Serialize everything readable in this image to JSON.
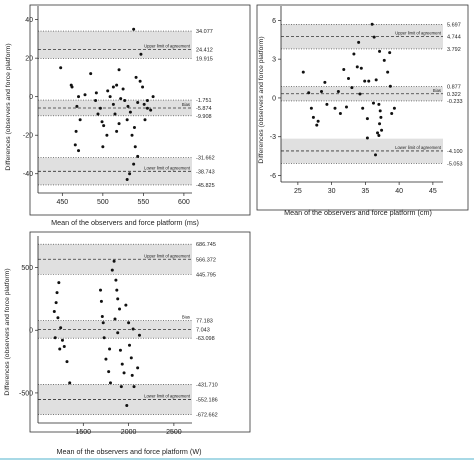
{
  "chart_data": [
    {
      "type": "scatter",
      "xlabel": "Mean of the observers and force platform (ms)",
      "ylabel": "Differences (observers and force platform)",
      "xlim": [
        420,
        610
      ],
      "ylim": [
        -50,
        45
      ],
      "xticks": [
        450,
        500,
        550,
        600
      ],
      "yticks": [
        40,
        20,
        0,
        -20,
        -40
      ],
      "bands": [
        [
          19.915,
          34.077
        ],
        [
          -9.908,
          -1.751
        ],
        [
          -45.825,
          -31.662
        ]
      ],
      "lines": [
        {
          "value": 34.077,
          "style": "dotted",
          "label": "34.077"
        },
        {
          "value": 24.412,
          "style": "dashed",
          "label": "24.412",
          "caption": "Upper limit of agreement"
        },
        {
          "value": 19.915,
          "style": "dotted",
          "label": "19.915"
        },
        {
          "value": -1.751,
          "style": "dotted",
          "label": "-1.751"
        },
        {
          "value": -5.874,
          "style": "dashed",
          "label": "-5.874",
          "caption": "Bias"
        },
        {
          "value": -9.908,
          "style": "dotted",
          "label": "-9.908"
        },
        {
          "value": -31.662,
          "style": "dotted",
          "label": "-31.662"
        },
        {
          "value": -38.743,
          "style": "dashed",
          "label": "-38.743",
          "caption": "Lower limit of agreement"
        },
        {
          "value": -45.825,
          "style": "dotted",
          "label": "-45.825"
        }
      ],
      "points": [
        [
          448,
          15
        ],
        [
          461,
          6
        ],
        [
          462,
          5
        ],
        [
          470,
          0
        ],
        [
          468,
          -5
        ],
        [
          472,
          -12
        ],
        [
          467,
          -18
        ],
        [
          466,
          -25
        ],
        [
          470,
          -28
        ],
        [
          478,
          1
        ],
        [
          485,
          12
        ],
        [
          492,
          2
        ],
        [
          491,
          -2
        ],
        [
          497,
          -6
        ],
        [
          494,
          -9
        ],
        [
          499,
          -13
        ],
        [
          501,
          -15
        ],
        [
          505,
          -20
        ],
        [
          500,
          -26
        ],
        [
          506,
          3
        ],
        [
          509,
          0
        ],
        [
          513,
          5
        ],
        [
          517,
          6
        ],
        [
          513,
          -4
        ],
        [
          515,
          -9
        ],
        [
          520,
          -14
        ],
        [
          522,
          -1
        ],
        [
          517,
          -18
        ],
        [
          520,
          14
        ],
        [
          525,
          4
        ],
        [
          527,
          -2
        ],
        [
          531,
          -5
        ],
        [
          534,
          -8
        ],
        [
          530,
          -12
        ],
        [
          539,
          -16
        ],
        [
          536,
          -20
        ],
        [
          540,
          -26
        ],
        [
          543,
          -31
        ],
        [
          538,
          -35
        ],
        [
          533,
          -40
        ],
        [
          530,
          -43
        ],
        [
          538,
          35
        ],
        [
          547,
          22
        ],
        [
          541,
          10
        ],
        [
          546,
          8
        ],
        [
          543,
          -3
        ],
        [
          551,
          -4
        ],
        [
          555,
          -6
        ],
        [
          552,
          -12
        ],
        [
          549,
          5
        ],
        [
          555,
          -2
        ],
        [
          559,
          -7
        ],
        [
          562,
          0
        ]
      ]
    },
    {
      "type": "scatter",
      "xlabel": "Mean of the observers and force platform (cm)",
      "ylabel": "Differences (observers and force platform)",
      "xlim": [
        22.5,
        46.5
      ],
      "ylim": [
        -6.5,
        6.8
      ],
      "xticks": [
        25,
        30,
        35,
        40,
        45
      ],
      "yticks": [
        6,
        3,
        0,
        -3,
        -6
      ],
      "bands": [
        [
          3.792,
          5.697
        ],
        [
          -0.233,
          0.877
        ],
        [
          -5.053,
          -3.148
        ]
      ],
      "lines": [
        {
          "value": 5.697,
          "style": "dotted",
          "label": "5.697"
        },
        {
          "value": 4.744,
          "style": "dashed",
          "label": "4.744",
          "caption": "Upper limit of agreement"
        },
        {
          "value": 3.792,
          "style": "dotted",
          "label": "3.792"
        },
        {
          "value": 0.877,
          "style": "dotted",
          "label": "0.877"
        },
        {
          "value": 0.322,
          "style": "dashed",
          "label": "0.322",
          "caption": "Bias"
        },
        {
          "value": -0.233,
          "style": "dotted",
          "label": "-0.233"
        },
        {
          "value": -4.1,
          "style": "dashed",
          "label": "-4.100",
          "caption": "Lower limit of agreement"
        },
        {
          "value": -5.053,
          "style": "dotted",
          "label": "-5.053"
        }
      ],
      "points": [
        [
          25.8,
          2.0
        ],
        [
          26.6,
          0.4
        ],
        [
          27.0,
          -0.8
        ],
        [
          27.8,
          -2.1
        ],
        [
          27.3,
          -1.5
        ],
        [
          28.0,
          -1.8
        ],
        [
          28.5,
          0.5
        ],
        [
          29.0,
          1.2
        ],
        [
          29.3,
          -0.5
        ],
        [
          30.5,
          -0.8
        ],
        [
          31.0,
          0.5
        ],
        [
          31.3,
          -1.2
        ],
        [
          31.8,
          2.2
        ],
        [
          32.5,
          1.5
        ],
        [
          32.2,
          -0.7
        ],
        [
          33.0,
          0.8
        ],
        [
          33.3,
          3.4
        ],
        [
          33.8,
          2.4
        ],
        [
          34.0,
          4.3
        ],
        [
          34.4,
          2.3
        ],
        [
          34.2,
          0.3
        ],
        [
          34.9,
          1.3
        ],
        [
          34.6,
          -0.8
        ],
        [
          35.5,
          1.3
        ],
        [
          35.3,
          -1.6
        ],
        [
          36.0,
          5.7
        ],
        [
          36.3,
          4.7
        ],
        [
          36.6,
          1.4
        ],
        [
          36.2,
          -0.4
        ],
        [
          37.1,
          3.6
        ],
        [
          37.0,
          -0.5
        ],
        [
          37.2,
          -1.0
        ],
        [
          37.3,
          -1.5
        ],
        [
          37.1,
          -2.0
        ],
        [
          37.4,
          -2.5
        ],
        [
          37.0,
          -2.9
        ],
        [
          36.8,
          -2.7
        ],
        [
          36.5,
          -4.4
        ],
        [
          37.8,
          2.9
        ],
        [
          38.3,
          2.0
        ],
        [
          38.7,
          0.9
        ],
        [
          38.9,
          -1.2
        ],
        [
          39.3,
          -0.8
        ],
        [
          38.6,
          3.5
        ],
        [
          35.3,
          -3.1
        ]
      ]
    },
    {
      "type": "scatter",
      "xlabel": "Mean of the observers and force platform (W)",
      "ylabel": "Differences (observers and force platform)",
      "xlim": [
        1000,
        2700
      ],
      "ylim": [
        -740,
        720
      ],
      "xticks": [
        1500,
        2000,
        2500
      ],
      "yticks": [
        500,
        0,
        -500
      ],
      "bands": [
        [
          445.795,
          686.745
        ],
        [
          -63.098,
          77.183
        ],
        [
          -672.662,
          -431.71
        ]
      ],
      "lines": [
        {
          "value": 686.745,
          "style": "dotted",
          "label": "686.745"
        },
        {
          "value": 566.372,
          "style": "dashed",
          "label": "566.372",
          "caption": "Upper limit of agreement"
        },
        {
          "value": 445.795,
          "style": "dotted",
          "label": "445.795"
        },
        {
          "value": 77.183,
          "style": "dotted",
          "label": "77.183",
          "caption": "Bias"
        },
        {
          "value": 7.043,
          "style": "dashed",
          "label": "7.043"
        },
        {
          "value": -63.098,
          "style": "dotted",
          "label": "-63.098"
        },
        {
          "value": -431.71,
          "style": "dotted",
          "label": "-431.710"
        },
        {
          "value": -552.186,
          "style": "dashed",
          "label": "-552.186",
          "caption": "Lower limit of agreement"
        },
        {
          "value": -672.662,
          "style": "dotted",
          "label": "-672.662"
        }
      ],
      "points": [
        [
          1180,
          150
        ],
        [
          1200,
          220
        ],
        [
          1210,
          300
        ],
        [
          1230,
          380
        ],
        [
          1220,
          100
        ],
        [
          1250,
          20
        ],
        [
          1270,
          -80
        ],
        [
          1240,
          -150
        ],
        [
          1290,
          -130
        ],
        [
          1320,
          -250
        ],
        [
          1350,
          -420
        ],
        [
          1190,
          -60
        ],
        [
          1690,
          320
        ],
        [
          1700,
          230
        ],
        [
          1710,
          110
        ],
        [
          1720,
          60
        ],
        [
          1730,
          -60
        ],
        [
          1750,
          -230
        ],
        [
          1780,
          -330
        ],
        [
          1800,
          -420
        ],
        [
          1790,
          -150
        ],
        [
          1820,
          480
        ],
        [
          1840,
          550
        ],
        [
          1860,
          400
        ],
        [
          1870,
          320
        ],
        [
          1880,
          250
        ],
        [
          1900,
          170
        ],
        [
          1850,
          90
        ],
        [
          1880,
          -20
        ],
        [
          1910,
          -160
        ],
        [
          1930,
          -270
        ],
        [
          1950,
          -340
        ],
        [
          1920,
          -450
        ],
        [
          1970,
          200
        ],
        [
          2000,
          60
        ],
        [
          2010,
          -120
        ],
        [
          2030,
          -220
        ],
        [
          2040,
          -360
        ],
        [
          1980,
          -600
        ],
        [
          2060,
          -450
        ],
        [
          2100,
          -300
        ],
        [
          2050,
          10
        ],
        [
          2120,
          -40
        ]
      ]
    }
  ]
}
